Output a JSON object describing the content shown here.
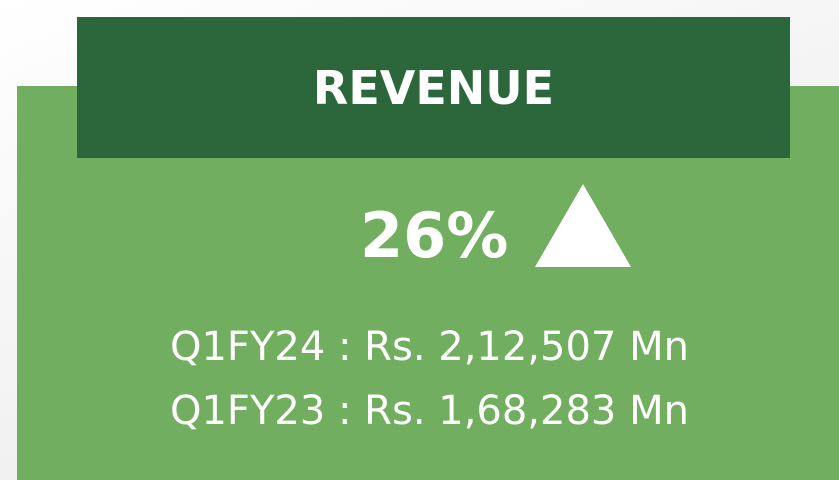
{
  "header": {
    "title": "REVENUE"
  },
  "change": {
    "text": "26%"
  },
  "lines": [
    "Q1FY24 : Rs. 2,12,507 Mn",
    "Q1FY23 : Rs. 1,68,283 Mn"
  ]
}
